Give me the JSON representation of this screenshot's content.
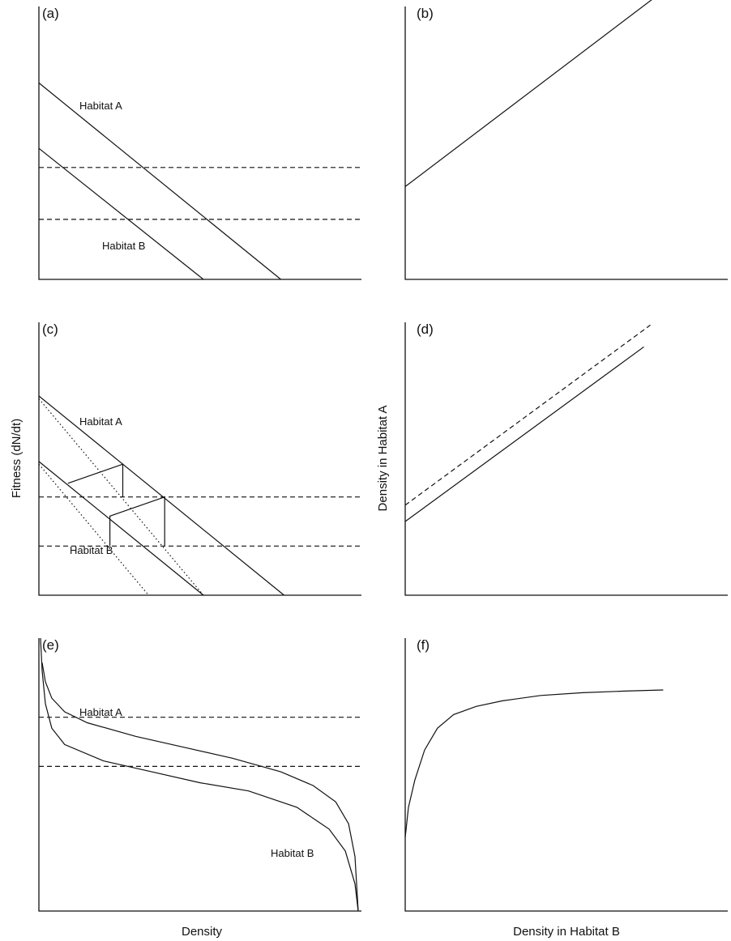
{
  "panels": {
    "a": {
      "label": "(a)",
      "curves": [
        "Habitat A",
        "Habitat B"
      ],
      "lines": [
        {
          "name": "Habitat A",
          "style": "solid",
          "points": [
            [
              0,
              0.72
            ],
            [
              0.75,
              0
            ]
          ]
        },
        {
          "name": "Habitat B",
          "style": "solid",
          "points": [
            [
              0,
              0.48
            ],
            [
              0.51,
              0
            ]
          ]
        },
        {
          "style": "dashed",
          "points": [
            [
              0,
              0.41
            ],
            [
              1,
              0.41
            ]
          ]
        },
        {
          "style": "dashed",
          "points": [
            [
              0,
              0.22
            ],
            [
              1,
              0.22
            ]
          ]
        }
      ]
    },
    "b": {
      "label": "(b)",
      "lines": [
        {
          "style": "solid",
          "points": [
            [
              0,
              0.34
            ],
            [
              0.77,
              1.03
            ]
          ]
        }
      ]
    },
    "c": {
      "label": "(c)",
      "curves": [
        "Habitat A",
        "Habitat B"
      ],
      "lines": [
        {
          "name": "Habitat A",
          "style": "solid",
          "points": [
            [
              0,
              0.73
            ],
            [
              0.76,
              0
            ]
          ]
        },
        {
          "name": "Habitat B",
          "style": "solid",
          "points": [
            [
              0,
              0.49
            ],
            [
              0.51,
              0
            ]
          ]
        },
        {
          "style": "dashed",
          "points": [
            [
              0,
              0.36
            ],
            [
              1,
              0.36
            ]
          ]
        },
        {
          "style": "dashed",
          "points": [
            [
              0,
              0.18
            ],
            [
              1,
              0.18
            ]
          ]
        },
        {
          "style": "dotted",
          "points": [
            [
              0,
              0.72
            ],
            [
              0.51,
              0
            ]
          ]
        },
        {
          "style": "dotted",
          "points": [
            [
              0,
              0.48
            ],
            [
              0.34,
              0
            ]
          ]
        },
        {
          "style": "solid",
          "points": [
            [
              0.09,
              0.41
            ],
            [
              0.26,
              0.48
            ],
            [
              0.26,
              0.36
            ]
          ]
        },
        {
          "style": "solid",
          "points": [
            [
              0.22,
              0.18
            ],
            [
              0.22,
              0.29
            ],
            [
              0.39,
              0.36
            ],
            [
              0.39,
              0.18
            ]
          ]
        }
      ]
    },
    "d": {
      "label": "(d)",
      "lines": [
        {
          "style": "solid",
          "points": [
            [
              0,
              0.27
            ],
            [
              0.74,
              0.91
            ]
          ]
        },
        {
          "style": "dashed",
          "points": [
            [
              0,
              0.33
            ],
            [
              0.76,
              0.99
            ]
          ]
        }
      ]
    },
    "e": {
      "label": "(e)",
      "curves": [
        "Habitat A",
        "Habitat B"
      ],
      "lines": [
        {
          "name": "Habitat A",
          "style": "solid",
          "points": [
            [
              0.01,
              0.91
            ],
            [
              0.02,
              0.84
            ],
            [
              0.04,
              0.78
            ],
            [
              0.08,
              0.73
            ],
            [
              0.15,
              0.69
            ],
            [
              0.3,
              0.64
            ],
            [
              0.45,
              0.6
            ],
            [
              0.6,
              0.56
            ],
            [
              0.75,
              0.51
            ],
            [
              0.85,
              0.46
            ],
            [
              0.92,
              0.4
            ],
            [
              0.96,
              0.32
            ],
            [
              0.98,
              0.2
            ],
            [
              0.99,
              0
            ]
          ]
        },
        {
          "name": "Habitat B",
          "style": "solid",
          "points": [
            [
              0.005,
              1.0
            ],
            [
              0.01,
              0.88
            ],
            [
              0.02,
              0.76
            ],
            [
              0.04,
              0.67
            ],
            [
              0.08,
              0.61
            ],
            [
              0.2,
              0.55
            ],
            [
              0.35,
              0.51
            ],
            [
              0.5,
              0.47
            ],
            [
              0.65,
              0.44
            ],
            [
              0.8,
              0.38
            ],
            [
              0.9,
              0.3
            ],
            [
              0.95,
              0.22
            ],
            [
              0.98,
              0.1
            ],
            [
              0.99,
              0
            ]
          ]
        },
        {
          "style": "dashed",
          "points": [
            [
              0,
              0.71
            ],
            [
              1,
              0.71
            ]
          ]
        },
        {
          "style": "dashed",
          "points": [
            [
              0,
              0.53
            ],
            [
              1,
              0.53
            ]
          ]
        }
      ]
    },
    "f": {
      "label": "(f)",
      "lines": [
        {
          "style": "solid",
          "points": [
            [
              0,
              0.27
            ],
            [
              0.01,
              0.38
            ],
            [
              0.03,
              0.48
            ],
            [
              0.06,
              0.59
            ],
            [
              0.1,
              0.67
            ],
            [
              0.15,
              0.72
            ],
            [
              0.22,
              0.75
            ],
            [
              0.3,
              0.77
            ],
            [
              0.42,
              0.79
            ],
            [
              0.55,
              0.8
            ],
            [
              0.68,
              0.806
            ],
            [
              0.8,
              0.81
            ]
          ]
        }
      ]
    }
  },
  "axes": {
    "left_y": "Fitness (dN/dt)",
    "left_x": "Density",
    "right_y": "Density in Habitat A",
    "right_x": "Density in Habitat B"
  },
  "colors": {
    "stroke": "#111111",
    "background": "#ffffff"
  }
}
